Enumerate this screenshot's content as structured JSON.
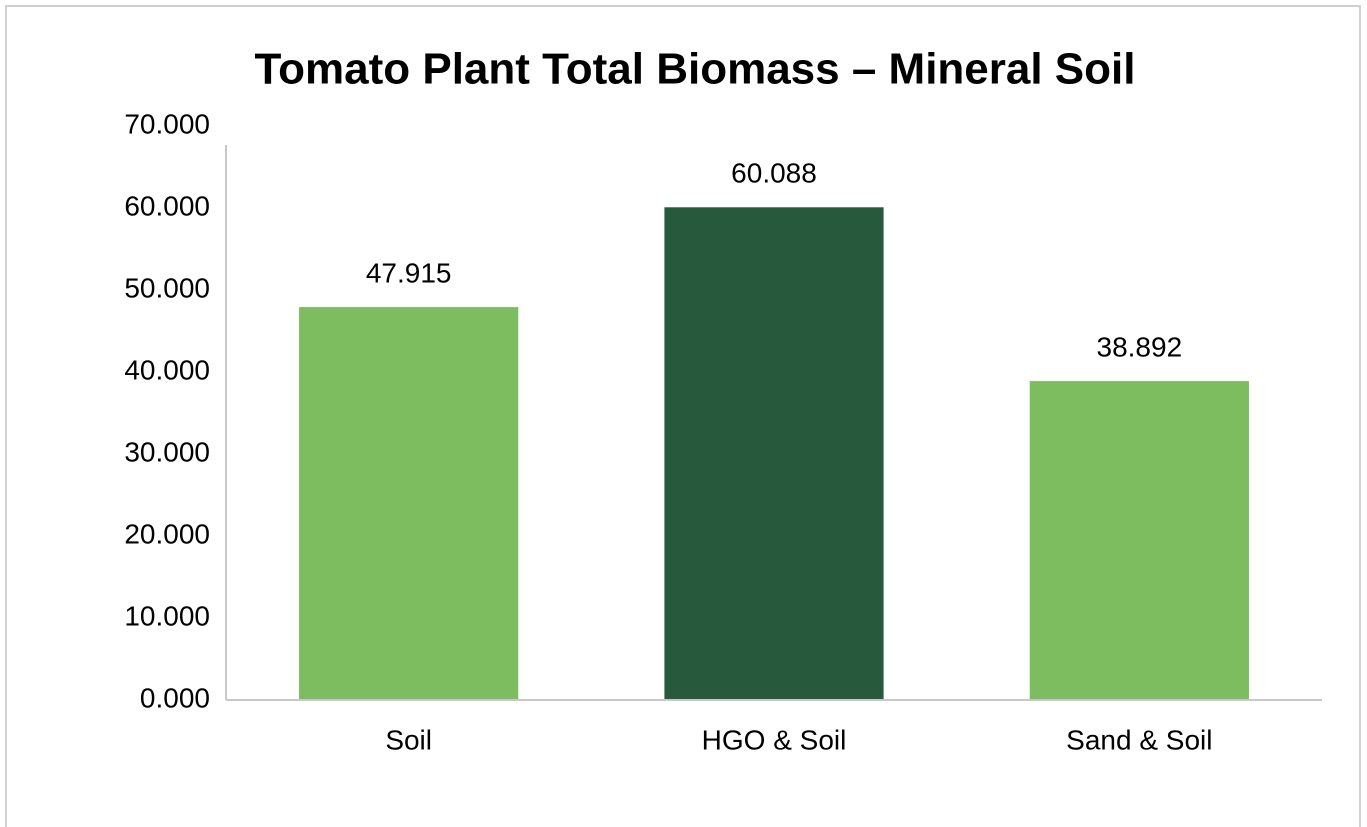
{
  "chart_data": {
    "type": "bar",
    "title": "Tomato Plant Total Biomass – Mineral Soil",
    "categories": [
      "Soil",
      "HGO & Soil",
      "Sand & Soil"
    ],
    "values": [
      47.915,
      60.088,
      38.892
    ],
    "colors": [
      "#7dbc5f",
      "#27593c",
      "#7dbc5f"
    ],
    "ylim": [
      0,
      70
    ],
    "yticks": [
      {
        "value": 0,
        "label": "0.000"
      },
      {
        "value": 10,
        "label": "10.000"
      },
      {
        "value": 20,
        "label": "20.000"
      },
      {
        "value": 30,
        "label": "30.000"
      },
      {
        "value": 40,
        "label": "40.000"
      },
      {
        "value": 50,
        "label": "50.000"
      },
      {
        "value": 60,
        "label": "60.000"
      },
      {
        "value": 70,
        "label": "70.000"
      }
    ],
    "grid": false
  }
}
